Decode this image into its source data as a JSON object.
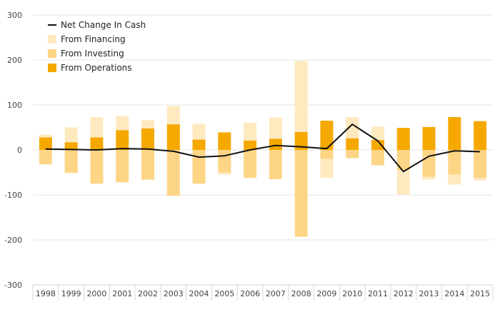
{
  "chart_data": {
    "type": "bar",
    "title": "",
    "xlabel": "",
    "ylabel": "",
    "categories": [
      "1998",
      "1999",
      "2000",
      "2001",
      "2002",
      "2003",
      "2004",
      "2005",
      "2006",
      "2007",
      "2008",
      "2009",
      "2010",
      "2011",
      "2012",
      "2013",
      "2014",
      "2015"
    ],
    "ylim": [
      -300,
      300
    ],
    "yticks": [
      300,
      200,
      100,
      0,
      -100,
      -200,
      -300
    ],
    "grid": true,
    "legend_position": "top-left",
    "stacked": true,
    "series": [
      {
        "name": "From Operations",
        "type": "bar",
        "color": "#F5A800",
        "values": [
          28,
          17,
          28,
          44,
          48,
          57,
          23,
          39,
          21,
          25,
          40,
          65,
          26,
          22,
          49,
          51,
          73,
          64
        ]
      },
      {
        "name": "From Investing",
        "type": "bar",
        "color": "#FDD585",
        "values": [
          -32,
          -51,
          -75,
          -72,
          -66,
          -102,
          -75,
          -50,
          -62,
          -65,
          -193,
          -20,
          -18,
          -34,
          -45,
          -60,
          -55,
          -62
        ]
      },
      {
        "name": "From Financing",
        "type": "bar",
        "color": "#FFE9BF",
        "values": [
          6,
          33,
          45,
          31,
          18,
          41,
          35,
          -5,
          39,
          47,
          158,
          -42,
          47,
          30,
          -54,
          -6,
          -22,
          -6
        ]
      },
      {
        "name": "Net Change In Cash",
        "type": "line",
        "color": "#111111",
        "values": [
          2,
          1,
          0,
          3,
          2,
          -3,
          -16,
          -13,
          0,
          10,
          7,
          3,
          57,
          20,
          -48,
          -14,
          -2,
          -4
        ]
      }
    ],
    "legend_order": [
      "Net Change In Cash",
      "From Financing",
      "From Investing",
      "From Operations"
    ]
  }
}
